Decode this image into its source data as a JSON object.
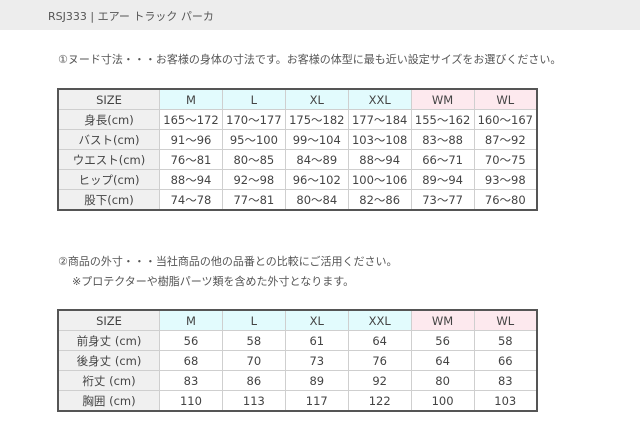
{
  "header": {
    "title": "RSJ333 | エアー トラック パーカ"
  },
  "section1": {
    "note": "①ヌード寸法・・・お客様の身体の寸法です。お客様の体型に最も近い設定サイズをお選びください。"
  },
  "section2": {
    "note": "②商品の外寸・・・当社商品の他の品番との比較にご活用ください。",
    "subnote": "※プロテクターや樹脂パーツ類を含めた外寸となります。"
  },
  "colors": {
    "men_header": "#e2fbfd",
    "women_header": "#fde9ee",
    "label_bg": "#f0f0f0"
  },
  "table1": {
    "headers": [
      "SIZE",
      "M",
      "L",
      "XL",
      "XXL",
      "WM",
      "WL"
    ],
    "rows": [
      [
        "身長(cm)",
        "165～172",
        "170～177",
        "175～182",
        "177～184",
        "155～162",
        "160～167"
      ],
      [
        "バスト(cm)",
        "91～96",
        "95～100",
        "99～104",
        "103～108",
        "83～88",
        "87～92"
      ],
      [
        "ウエスト(cm)",
        "76～81",
        "80～85",
        "84～89",
        "88～94",
        "66～71",
        "70～75"
      ],
      [
        "ヒップ(cm)",
        "88～94",
        "92～98",
        "96～102",
        "100～106",
        "89～94",
        "93～98"
      ],
      [
        "股下(cm)",
        "74～78",
        "77～81",
        "80～84",
        "82～86",
        "73～77",
        "76～80"
      ]
    ]
  },
  "table2": {
    "headers": [
      "SIZE",
      "M",
      "L",
      "XL",
      "XXL",
      "WM",
      "WL"
    ],
    "rows": [
      [
        "前身丈 (cm)",
        "56",
        "58",
        "61",
        "64",
        "56",
        "58"
      ],
      [
        "後身丈 (cm)",
        "68",
        "70",
        "73",
        "76",
        "64",
        "66"
      ],
      [
        "裄丈 (cm)",
        "83",
        "86",
        "89",
        "92",
        "80",
        "83"
      ],
      [
        "胸囲 (cm)",
        "110",
        "113",
        "117",
        "122",
        "100",
        "103"
      ]
    ]
  }
}
